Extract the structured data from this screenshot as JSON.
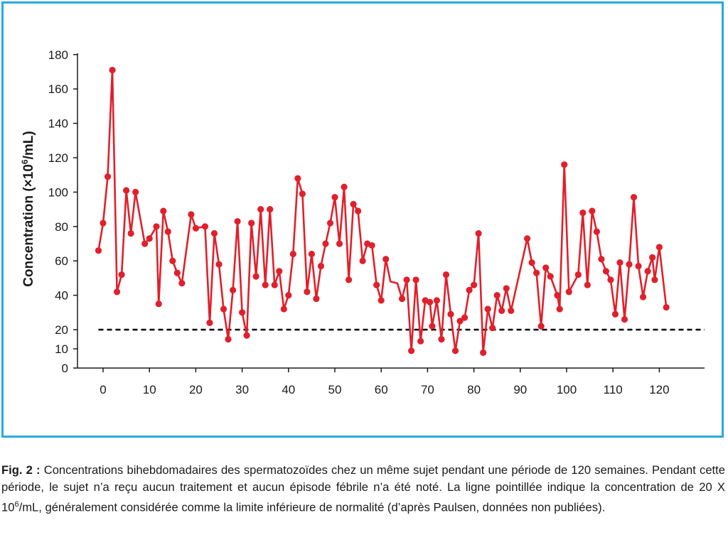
{
  "chart_data": {
    "type": "line",
    "ylabel_main": "Concentration (×10",
    "ylabel_sup": "6",
    "ylabel_tail": "/mL)",
    "xlabel": "",
    "xlim": [
      -1.5,
      130
    ],
    "ylim": [
      0,
      180
    ],
    "x_ticks": [
      0,
      10,
      20,
      30,
      40,
      50,
      60,
      70,
      80,
      90,
      100,
      110,
      120
    ],
    "y_ticks": [
      0,
      10,
      20,
      40,
      60,
      80,
      100,
      120,
      140,
      160,
      180
    ],
    "grid": false,
    "colors": {
      "series": "#e0202b",
      "threshold": "#000000"
    },
    "threshold": {
      "value": 20,
      "style": "dashed"
    },
    "series": [
      {
        "points": [
          {
            "x": -1,
            "y": 66,
            "m": true
          },
          {
            "x": 0,
            "y": 82,
            "m": true
          },
          {
            "x": 1,
            "y": 109,
            "m": true
          },
          {
            "x": 2,
            "y": 171,
            "m": true
          },
          {
            "x": 3,
            "y": 42,
            "m": true
          },
          {
            "x": 4,
            "y": 52,
            "m": true
          },
          {
            "x": 5,
            "y": 101,
            "m": true
          },
          {
            "x": 6,
            "y": 76,
            "m": true
          },
          {
            "x": 7,
            "y": 100,
            "m": true
          },
          {
            "x": 9,
            "y": 70,
            "m": true
          },
          {
            "x": 10,
            "y": 73,
            "m": true
          },
          {
            "x": 11.5,
            "y": 80,
            "m": true
          },
          {
            "x": 12,
            "y": 35,
            "m": true
          },
          {
            "x": 13,
            "y": 89,
            "m": true
          },
          {
            "x": 14,
            "y": 77,
            "m": true
          },
          {
            "x": 15,
            "y": 60,
            "m": true
          },
          {
            "x": 16,
            "y": 53,
            "m": true
          },
          {
            "x": 17,
            "y": 47,
            "m": true
          },
          {
            "x": 19,
            "y": 87,
            "m": true
          },
          {
            "x": 20,
            "y": 79,
            "m": true
          },
          {
            "x": 22,
            "y": 80,
            "m": true
          },
          {
            "x": 23,
            "y": 24,
            "m": true
          },
          {
            "x": 24,
            "y": 76,
            "m": true
          },
          {
            "x": 25,
            "y": 58,
            "m": true
          },
          {
            "x": 26,
            "y": 32,
            "m": true
          },
          {
            "x": 27,
            "y": 15,
            "m": true
          },
          {
            "x": 28,
            "y": 43,
            "m": true
          },
          {
            "x": 29,
            "y": 83,
            "m": true
          },
          {
            "x": 30,
            "y": 30,
            "m": true
          },
          {
            "x": 31,
            "y": 17,
            "m": true
          },
          {
            "x": 32,
            "y": 82,
            "m": true
          },
          {
            "x": 33,
            "y": 51,
            "m": true
          },
          {
            "x": 34,
            "y": 90,
            "m": true
          },
          {
            "x": 35,
            "y": 46,
            "m": true
          },
          {
            "x": 36,
            "y": 90,
            "m": true
          },
          {
            "x": 37,
            "y": 46,
            "m": true
          },
          {
            "x": 38,
            "y": 54,
            "m": true
          },
          {
            "x": 39,
            "y": 32,
            "m": true
          },
          {
            "x": 40,
            "y": 40,
            "m": true
          },
          {
            "x": 41,
            "y": 64,
            "m": true
          },
          {
            "x": 42,
            "y": 108,
            "m": true
          },
          {
            "x": 43,
            "y": 99,
            "m": true
          },
          {
            "x": 44,
            "y": 42,
            "m": true
          },
          {
            "x": 45,
            "y": 64,
            "m": true
          },
          {
            "x": 46,
            "y": 38,
            "m": true
          },
          {
            "x": 47,
            "y": 57,
            "m": true
          },
          {
            "x": 48,
            "y": 70,
            "m": true
          },
          {
            "x": 49,
            "y": 82,
            "m": true
          },
          {
            "x": 50,
            "y": 97,
            "m": true
          },
          {
            "x": 51,
            "y": 70,
            "m": true
          },
          {
            "x": 52,
            "y": 103,
            "m": true
          },
          {
            "x": 53,
            "y": 49,
            "m": true
          },
          {
            "x": 54,
            "y": 93,
            "m": true
          },
          {
            "x": 55,
            "y": 89,
            "m": true
          },
          {
            "x": 56,
            "y": 60,
            "m": true
          },
          {
            "x": 57,
            "y": 70,
            "m": true
          },
          {
            "x": 58,
            "y": 69,
            "m": true
          },
          {
            "x": 59,
            "y": 46,
            "m": true
          },
          {
            "x": 60,
            "y": 37,
            "m": true
          },
          {
            "x": 61,
            "y": 61,
            "m": true
          },
          {
            "x": 62,
            "y": 48,
            "m": false
          },
          {
            "x": 63.5,
            "y": 47,
            "m": false
          },
          {
            "x": 64.5,
            "y": 38,
            "m": true
          },
          {
            "x": 65.5,
            "y": 49,
            "m": true
          },
          {
            "x": 66.5,
            "y": 9,
            "m": true
          },
          {
            "x": 67.5,
            "y": 49,
            "m": true
          },
          {
            "x": 68.5,
            "y": 14,
            "m": true
          },
          {
            "x": 69.5,
            "y": 37,
            "m": true
          },
          {
            "x": 70.5,
            "y": 36,
            "m": true
          },
          {
            "x": 71,
            "y": 22,
            "m": true
          },
          {
            "x": 72,
            "y": 37,
            "m": true
          },
          {
            "x": 73,
            "y": 15,
            "m": true
          },
          {
            "x": 74,
            "y": 52,
            "m": true
          },
          {
            "x": 75,
            "y": 29,
            "m": true
          },
          {
            "x": 76,
            "y": 9,
            "m": true
          },
          {
            "x": 77,
            "y": 25,
            "m": true
          },
          {
            "x": 78,
            "y": 27,
            "m": true
          },
          {
            "x": 79,
            "y": 43,
            "m": true
          },
          {
            "x": 80,
            "y": 46,
            "m": true
          },
          {
            "x": 81,
            "y": 76,
            "m": true
          },
          {
            "x": 82,
            "y": 8,
            "m": true
          },
          {
            "x": 83,
            "y": 32,
            "m": true
          },
          {
            "x": 84,
            "y": 21,
            "m": true
          },
          {
            "x": 85,
            "y": 40,
            "m": true
          },
          {
            "x": 86,
            "y": 31,
            "m": true
          },
          {
            "x": 87,
            "y": 44,
            "m": true
          },
          {
            "x": 88,
            "y": 31,
            "m": true
          },
          {
            "x": 91.5,
            "y": 73,
            "m": true
          },
          {
            "x": 92.5,
            "y": 59,
            "m": true
          },
          {
            "x": 93.5,
            "y": 53,
            "m": true
          },
          {
            "x": 94.5,
            "y": 22,
            "m": true
          },
          {
            "x": 95.5,
            "y": 56,
            "m": true
          },
          {
            "x": 96.5,
            "y": 51,
            "m": true
          },
          {
            "x": 98,
            "y": 40,
            "m": true
          },
          {
            "x": 98.5,
            "y": 32,
            "m": true
          },
          {
            "x": 99.5,
            "y": 116,
            "m": true
          },
          {
            "x": 100.5,
            "y": 42,
            "m": true
          },
          {
            "x": 102.5,
            "y": 52,
            "m": true
          },
          {
            "x": 103.5,
            "y": 88,
            "m": true
          },
          {
            "x": 104.5,
            "y": 46,
            "m": true
          },
          {
            "x": 105.5,
            "y": 89,
            "m": true
          },
          {
            "x": 106.5,
            "y": 77,
            "m": true
          },
          {
            "x": 107.5,
            "y": 61,
            "m": true
          },
          {
            "x": 108.5,
            "y": 54,
            "m": true
          },
          {
            "x": 109.5,
            "y": 49,
            "m": true
          },
          {
            "x": 110.5,
            "y": 29,
            "m": true
          },
          {
            "x": 111.5,
            "y": 59,
            "m": true
          },
          {
            "x": 112.5,
            "y": 26,
            "m": true
          },
          {
            "x": 113.5,
            "y": 58,
            "m": true
          },
          {
            "x": 114.5,
            "y": 97,
            "m": true
          },
          {
            "x": 115.5,
            "y": 57,
            "m": true
          },
          {
            "x": 116.5,
            "y": 39,
            "m": true
          },
          {
            "x": 117.5,
            "y": 54,
            "m": true
          },
          {
            "x": 118.5,
            "y": 62,
            "m": true
          },
          {
            "x": 119,
            "y": 49,
            "m": true
          },
          {
            "x": 120,
            "y": 68,
            "m": true
          },
          {
            "x": 121.5,
            "y": 33,
            "m": true
          }
        ]
      }
    ]
  },
  "caption": {
    "label": "Fig. 2 :",
    "text_part1": " Concentrations bihebdomadaires des spermatozoïdes chez un même sujet pendant une période de 120 semaines. Pendant cette période, le sujet n’a reçu aucun traitement et aucun épisode fébrile n’a été noté. La ligne pointillée indique la concentration de 20 X 10",
    "sup": "6",
    "text_part2": "/mL, généralement considérée comme la limite inférieure de normalité (d’après Paulsen, données non publiées)."
  }
}
